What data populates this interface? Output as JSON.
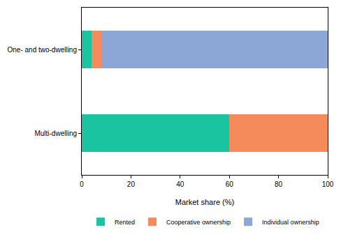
{
  "chart_data": {
    "type": "bar",
    "orientation": "horizontal",
    "stacked": true,
    "xlabel": "Market share (%)",
    "categories": [
      "One- and two-dwelling",
      "Multi-dwelling"
    ],
    "series": [
      {
        "name": "Rented",
        "color": "#1bc4a0",
        "values": [
          4,
          60
        ]
      },
      {
        "name": "Cooperative ownership",
        "color": "#f58a5b",
        "values": [
          4,
          40
        ]
      },
      {
        "name": "Individual ownership",
        "color": "#8ca6d6",
        "values": [
          92,
          0
        ]
      }
    ],
    "xlim": [
      0,
      100
    ],
    "xticks": [
      0,
      20,
      40,
      60,
      80,
      100
    ],
    "grid": false,
    "legend": "bottom"
  }
}
